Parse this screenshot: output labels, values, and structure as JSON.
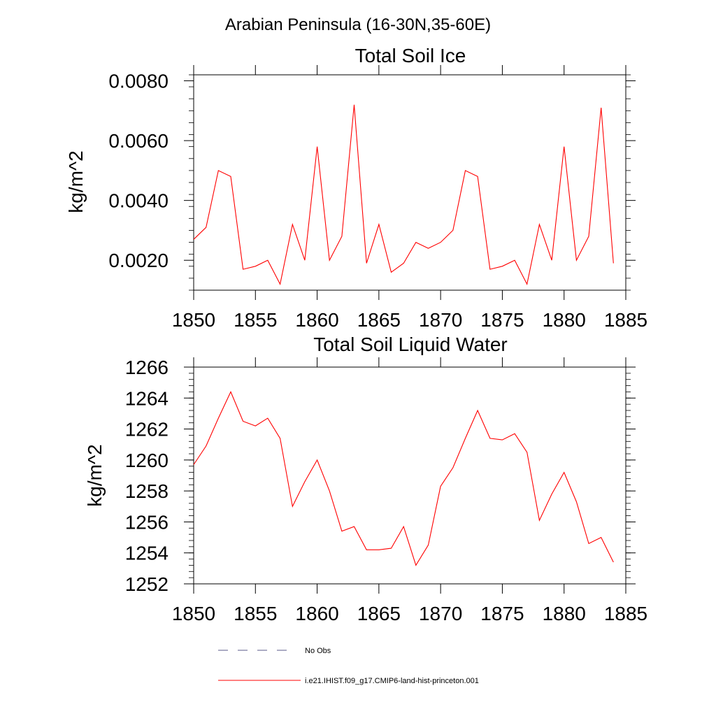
{
  "page_title": "Arabian Peninsula (16-30N,35-60E)",
  "colors": {
    "series": "#ff0000",
    "no_obs": "#5a5a8a",
    "axis": "#000000"
  },
  "legend": {
    "no_obs_label": "No Obs",
    "model_label": "i.e21.IHIST.f09_g17.CMIP6-land-hist-princeton.001"
  },
  "chart_data": [
    {
      "type": "line",
      "title": "Total Soil Ice",
      "xlabel": "",
      "ylabel": "kg/m^2",
      "xlim": [
        1850,
        1885
      ],
      "ylim": [
        0.001,
        0.0082
      ],
      "xticks": [
        1850,
        1855,
        1860,
        1865,
        1870,
        1875,
        1880,
        1885
      ],
      "xtick_labels": [
        "1850",
        "1855",
        "1860",
        "1865",
        "1870",
        "1875",
        "1880",
        "1885"
      ],
      "yticks": [
        0.002,
        0.004,
        0.006,
        0.008
      ],
      "ytick_labels": [
        "0.0020",
        "0.0040",
        "0.0060",
        "0.0080"
      ],
      "grid": false,
      "series": [
        {
          "name": "i.e21.IHIST.f09_g17.CMIP6-land-hist-princeton.001",
          "x": [
            1850,
            1851,
            1852,
            1853,
            1854,
            1855,
            1856,
            1857,
            1858,
            1859,
            1860,
            1861,
            1862,
            1863,
            1864,
            1865,
            1866,
            1867,
            1868,
            1869,
            1870,
            1871,
            1872,
            1873,
            1874,
            1875,
            1876,
            1877,
            1878,
            1879,
            1880,
            1881,
            1882,
            1883,
            1884
          ],
          "y": [
            0.0027,
            0.0031,
            0.005,
            0.0048,
            0.0017,
            0.0018,
            0.002,
            0.0012,
            0.0032,
            0.002,
            0.0058,
            0.002,
            0.0028,
            0.0072,
            0.0019,
            0.0032,
            0.0016,
            0.0019,
            0.0026,
            0.0024,
            0.0026,
            0.003,
            0.005,
            0.0048,
            0.0017,
            0.0018,
            0.002,
            0.0012,
            0.0032,
            0.002,
            0.0058,
            0.002,
            0.0028,
            0.0071,
            0.0019
          ]
        }
      ]
    },
    {
      "type": "line",
      "title": "Total Soil Liquid Water",
      "xlabel": "",
      "ylabel": "kg/m^2",
      "xlim": [
        1850,
        1885
      ],
      "ylim": [
        1252,
        1266
      ],
      "xticks": [
        1850,
        1855,
        1860,
        1865,
        1870,
        1875,
        1880,
        1885
      ],
      "xtick_labels": [
        "1850",
        "1855",
        "1860",
        "1865",
        "1870",
        "1875",
        "1880",
        "1885"
      ],
      "yticks": [
        1252,
        1254,
        1256,
        1258,
        1260,
        1262,
        1264,
        1266
      ],
      "ytick_labels": [
        "1252",
        "1254",
        "1256",
        "1258",
        "1260",
        "1262",
        "1264",
        "1266"
      ],
      "grid": false,
      "series": [
        {
          "name": "i.e21.IHIST.f09_g17.CMIP6-land-hist-princeton.001",
          "x": [
            1850,
            1851,
            1852,
            1853,
            1854,
            1855,
            1856,
            1857,
            1858,
            1859,
            1860,
            1861,
            1862,
            1863,
            1864,
            1865,
            1866,
            1867,
            1868,
            1869,
            1870,
            1871,
            1872,
            1873,
            1874,
            1875,
            1876,
            1877,
            1878,
            1879,
            1880,
            1881,
            1882,
            1883,
            1884
          ],
          "y": [
            1259.7,
            1260.9,
            1262.7,
            1264.4,
            1262.5,
            1262.2,
            1262.7,
            1261.4,
            1257.0,
            1258.6,
            1260.0,
            1258.0,
            1255.4,
            1255.7,
            1254.2,
            1254.2,
            1254.3,
            1255.7,
            1253.2,
            1254.5,
            1258.3,
            1259.5,
            1261.4,
            1263.2,
            1261.4,
            1261.3,
            1261.7,
            1260.5,
            1256.1,
            1257.8,
            1259.2,
            1257.3,
            1254.6,
            1255.0,
            1253.4
          ]
        }
      ]
    }
  ]
}
